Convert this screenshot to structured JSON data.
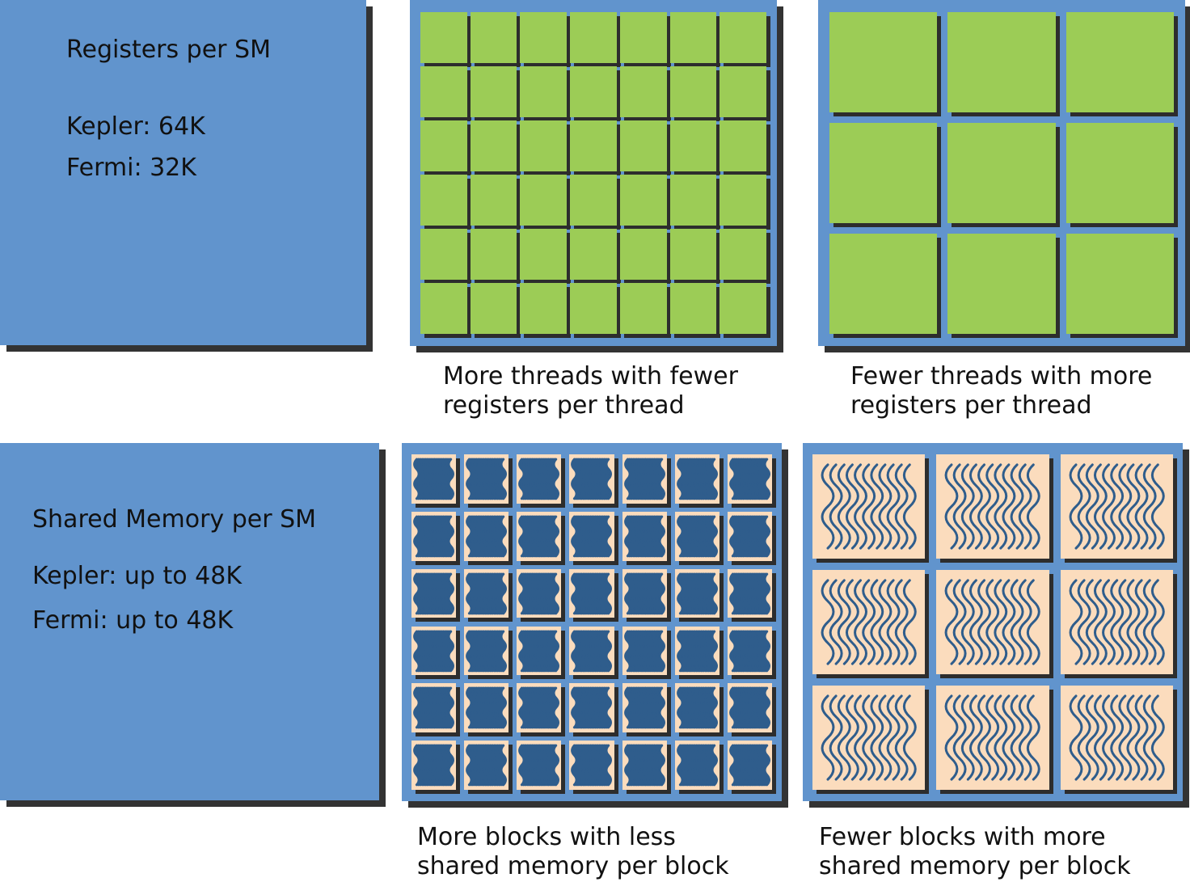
{
  "registers": {
    "title": "Registers per SM",
    "kepler": "Kepler: 64K",
    "fermi": "Fermi: 32K"
  },
  "shared_memory": {
    "title": "Shared Memory per SM",
    "kepler": "Kepler: up to 48K",
    "fermi": "Fermi: up to 48K"
  },
  "captions": {
    "more_threads": [
      "More threads with fewer",
      "registers per thread"
    ],
    "fewer_threads": [
      "Fewer threads with more",
      "registers per thread"
    ],
    "more_blocks": [
      "More blocks with less",
      "shared memory per block"
    ],
    "fewer_blocks": [
      "Fewer blocks with more",
      "shared memory per block"
    ]
  },
  "grids": {
    "more_threads": {
      "cols": 7,
      "rows": 6,
      "label": "thread register tile"
    },
    "fewer_threads": {
      "cols": 3,
      "rows": 3,
      "label": "thread register tile"
    },
    "more_blocks": {
      "cols": 7,
      "rows": 6,
      "label": "block shared-memory tile"
    },
    "fewer_blocks": {
      "cols": 3,
      "rows": 3,
      "label": "block shared-memory tile"
    }
  },
  "colors": {
    "panel_blue": "#6194cd",
    "shadow": "#333333",
    "register_green": "#9ccc56",
    "shared_mem_peach": "#fbdcbd",
    "wave_blue": "#2f5d8c"
  }
}
